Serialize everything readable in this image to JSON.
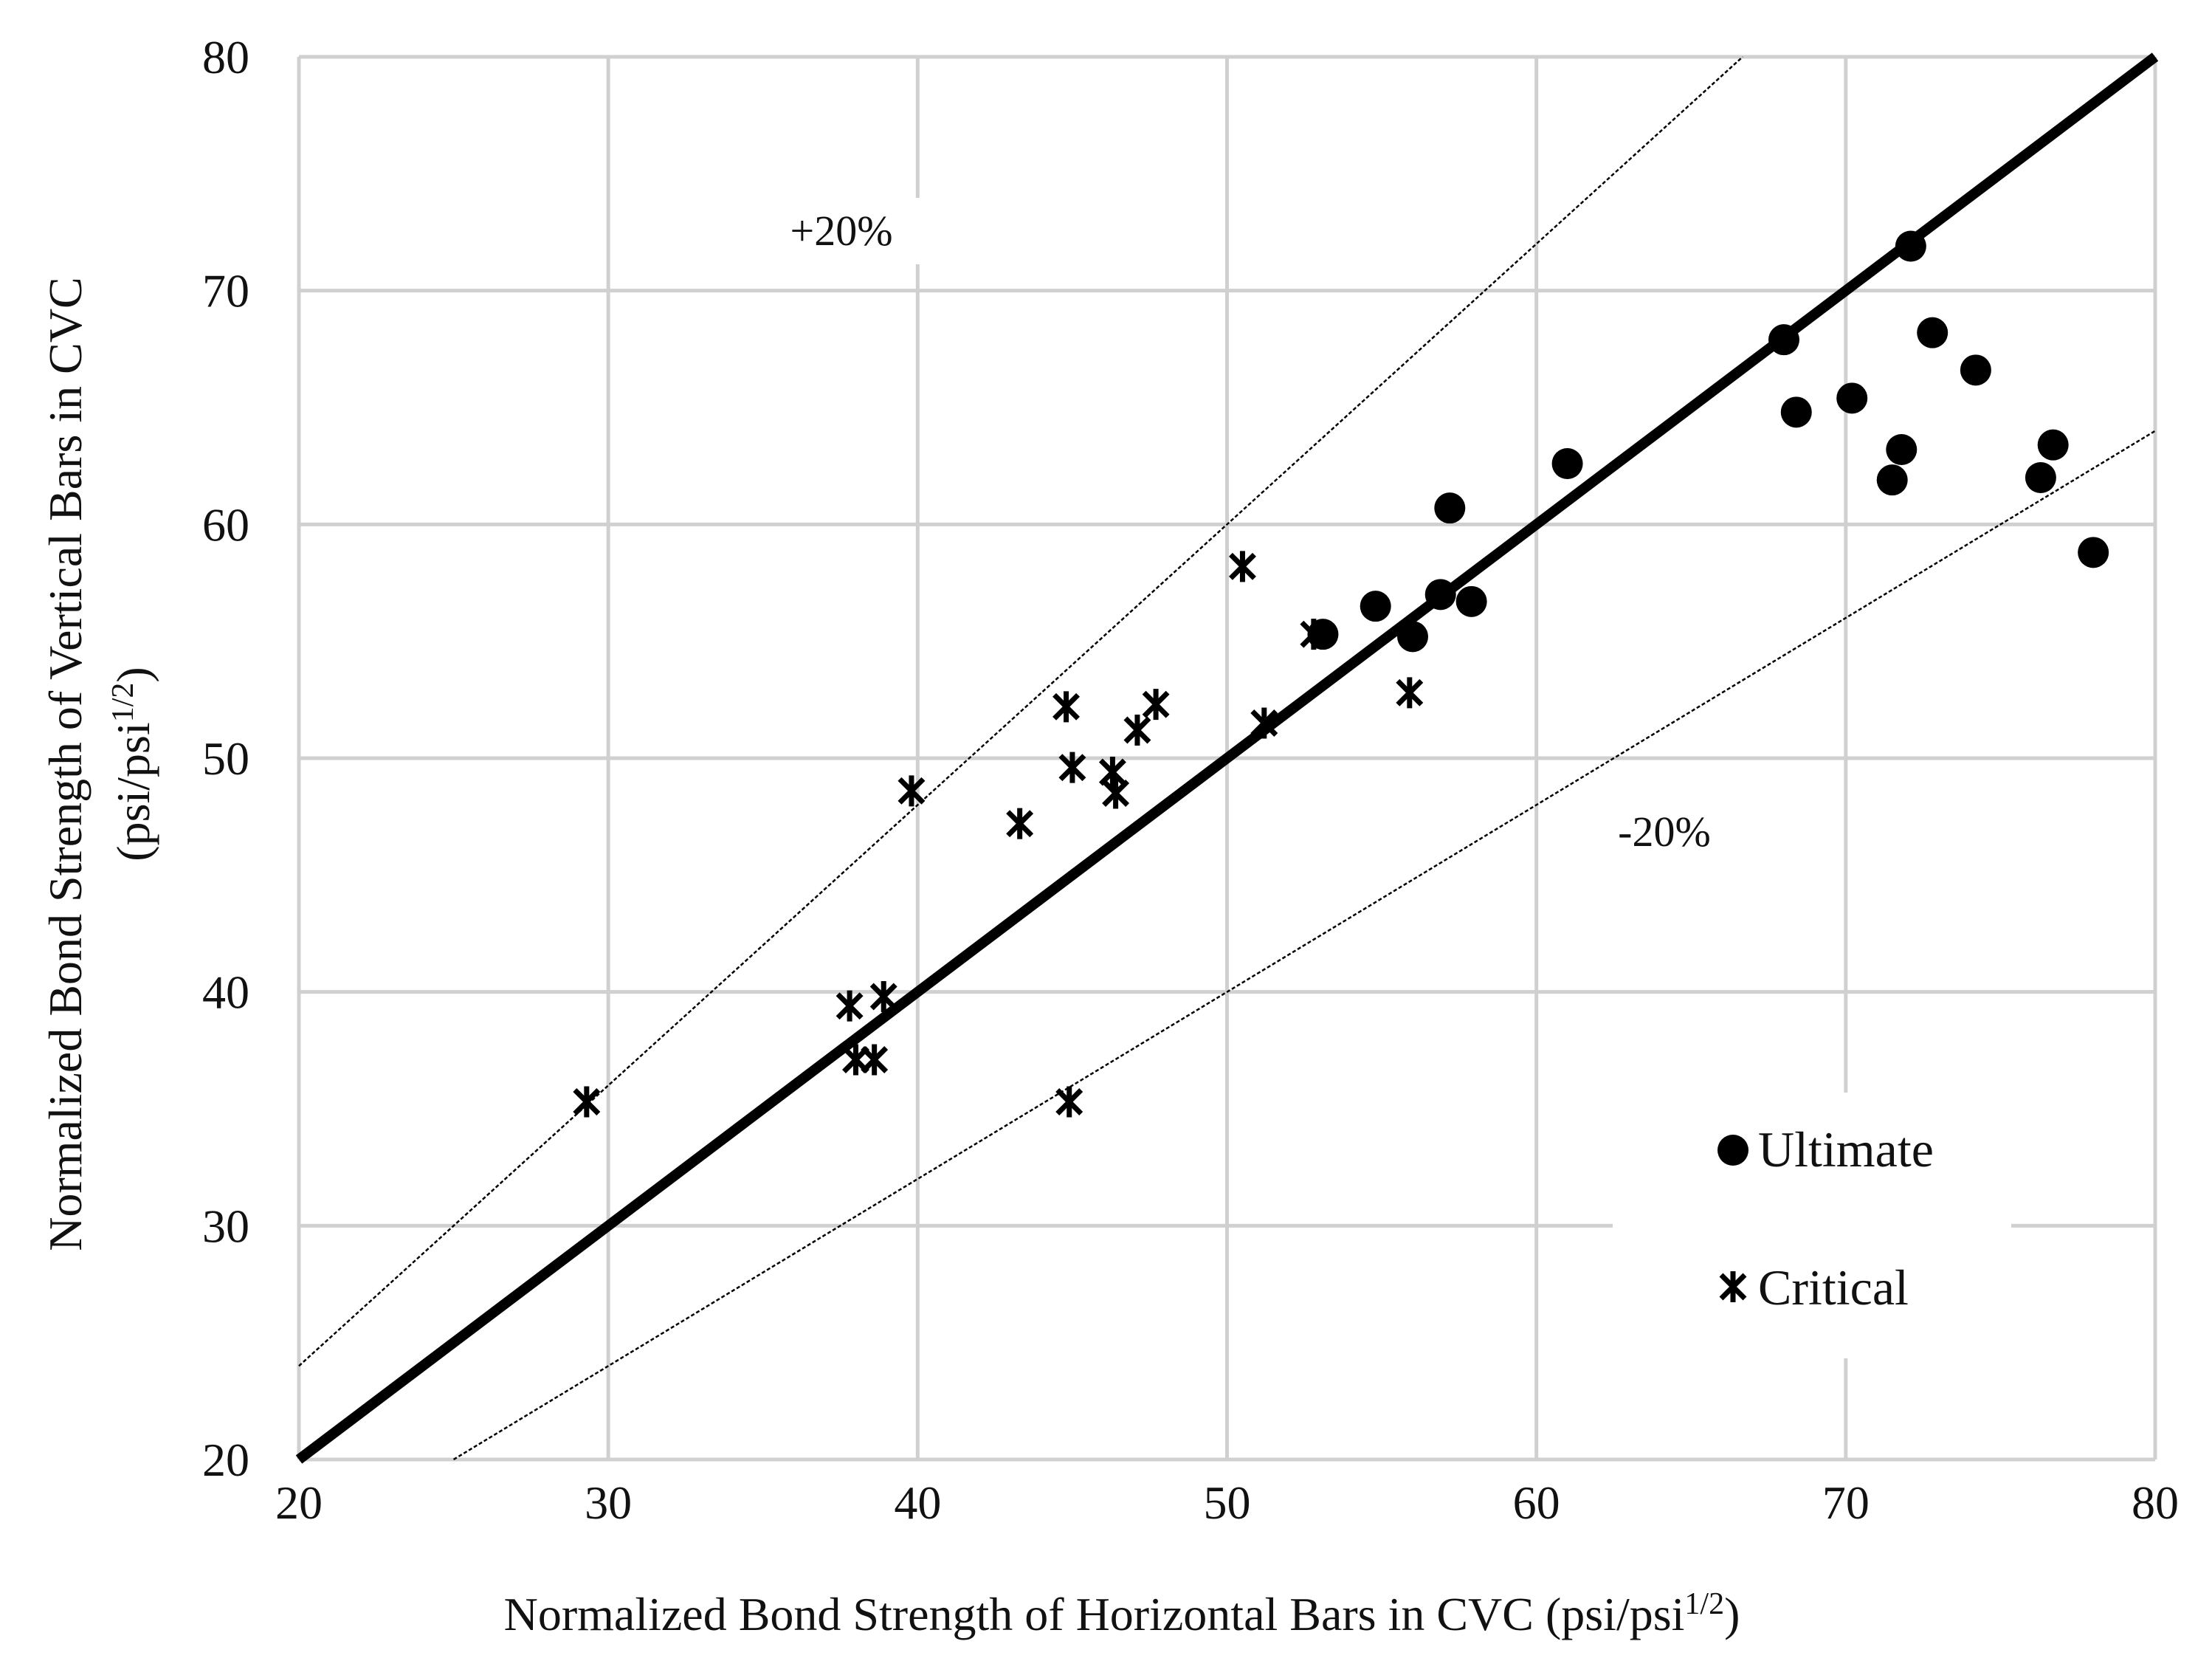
{
  "chart_data": {
    "type": "scatter",
    "title": "",
    "xlabel": "Normalized Bond Strength of Horizontal Bars in CVC (psi/psi",
    "xlabel_sup": "1/2",
    "xlabel_end": ")",
    "ylabel_line1": "Normalized Bond Strength of Vertical  Bars in CVC",
    "ylabel_line2": "(psi/psi",
    "ylabel_sup": "1/2",
    "ylabel_end": ")",
    "xlim": [
      20,
      80
    ],
    "ylim": [
      20,
      80
    ],
    "xticks": [
      20,
      30,
      40,
      50,
      60,
      70,
      80
    ],
    "yticks": [
      20,
      30,
      40,
      50,
      60,
      70,
      80
    ],
    "xtick_labels": [
      "20",
      "30",
      "40",
      "50",
      "60",
      "70",
      "80"
    ],
    "ytick_labels": [
      "20",
      "30",
      "40",
      "50",
      "60",
      "70",
      "80"
    ],
    "grid": true,
    "legend_position": "bottom-right",
    "reference_lines": [
      {
        "name": "equality",
        "slope": 1.0
      },
      {
        "name": "plus-20",
        "slope": 1.2,
        "label": "+20%"
      },
      {
        "name": "minus-20",
        "slope": 0.8,
        "label": "-20%"
      }
    ],
    "series": [
      {
        "name": "Ultimate",
        "marker": "circle",
        "points": [
          [
            53.1,
            55.3
          ],
          [
            54.8,
            56.5
          ],
          [
            56.0,
            55.2
          ],
          [
            56.9,
            57.0
          ],
          [
            57.2,
            60.7
          ],
          [
            57.9,
            56.7
          ],
          [
            61.0,
            62.6
          ],
          [
            68.0,
            67.9
          ],
          [
            68.4,
            64.8
          ],
          [
            70.2,
            65.4
          ],
          [
            71.5,
            61.9
          ],
          [
            71.8,
            63.2
          ],
          [
            72.1,
            71.9
          ],
          [
            72.8,
            68.2
          ],
          [
            74.2,
            66.6
          ],
          [
            76.3,
            62.0
          ],
          [
            76.7,
            63.4
          ],
          [
            78.0,
            58.8
          ]
        ]
      },
      {
        "name": "Critical",
        "marker": "asterisk",
        "points": [
          [
            29.3,
            35.3
          ],
          [
            37.8,
            39.4
          ],
          [
            38.0,
            37.1
          ],
          [
            38.6,
            37.1
          ],
          [
            38.9,
            39.8
          ],
          [
            39.8,
            48.6
          ],
          [
            43.3,
            47.2
          ],
          [
            44.8,
            52.2
          ],
          [
            44.9,
            35.3
          ],
          [
            45.0,
            49.6
          ],
          [
            46.3,
            49.4
          ],
          [
            46.4,
            48.5
          ],
          [
            47.1,
            51.2
          ],
          [
            47.7,
            52.3
          ],
          [
            50.5,
            58.2
          ],
          [
            51.2,
            51.5
          ],
          [
            52.8,
            55.3
          ],
          [
            55.9,
            52.8
          ]
        ]
      }
    ]
  }
}
